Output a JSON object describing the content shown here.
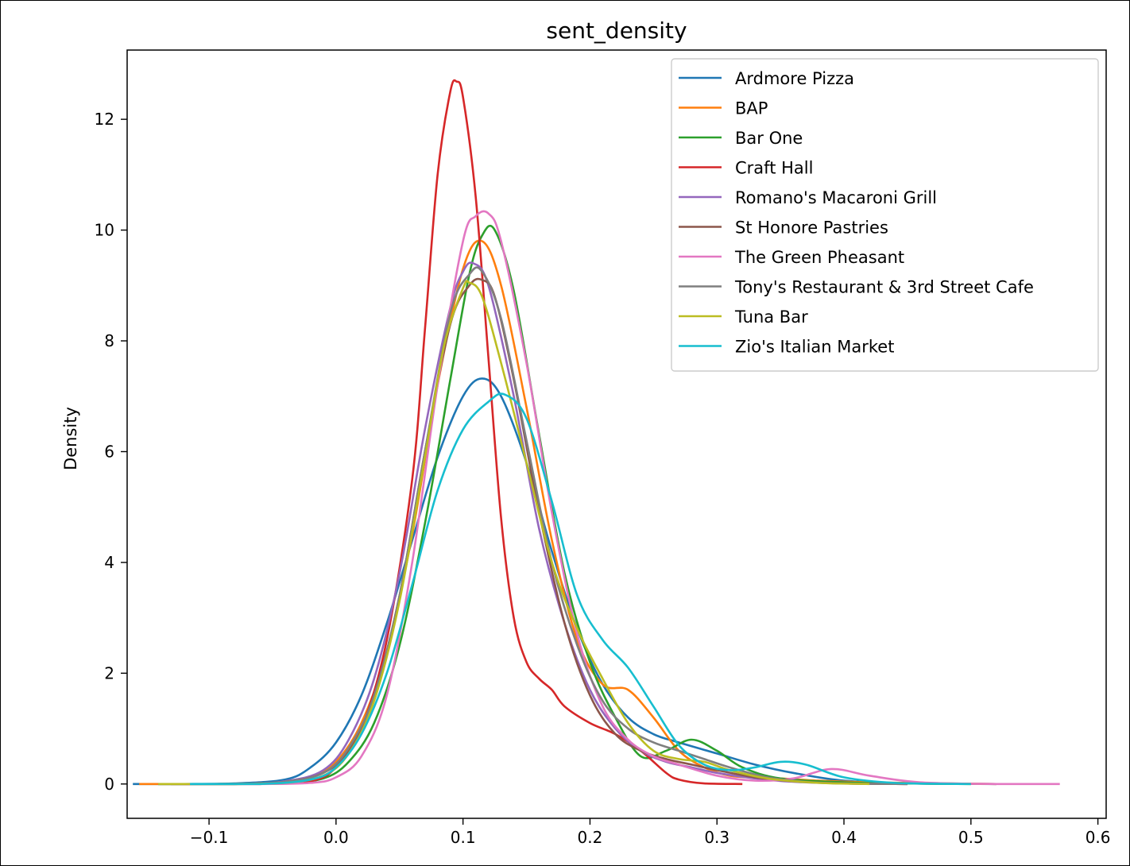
{
  "chart_data": {
    "type": "line",
    "title": "sent_density",
    "xlabel": "",
    "ylabel": "Density",
    "xlim": [
      -0.1645,
      0.6065
    ],
    "ylim": [
      -0.62,
      13.25
    ],
    "xticks": [
      -0.1,
      0.0,
      0.1,
      0.2,
      0.3,
      0.4,
      0.5,
      0.6
    ],
    "xtick_labels": [
      "−0.1",
      "0.0",
      "0.1",
      "0.2",
      "0.3",
      "0.4",
      "0.5",
      "0.6"
    ],
    "yticks": [
      0,
      2,
      4,
      6,
      8,
      10,
      12
    ],
    "ytick_labels": [
      "0",
      "2",
      "4",
      "6",
      "8",
      "10",
      "12"
    ],
    "grid": false,
    "legend_position": "top-right",
    "series": [
      {
        "name": "Ardmore Pizza",
        "color": "#1f77b4",
        "x": [
          -0.16,
          -0.12,
          -0.08,
          -0.04,
          -0.02,
          0.0,
          0.02,
          0.04,
          0.06,
          0.08,
          0.1,
          0.115,
          0.13,
          0.15,
          0.17,
          0.19,
          0.21,
          0.23,
          0.25,
          0.27,
          0.3,
          0.33,
          0.36,
          0.4,
          0.45,
          0.52
        ],
        "y": [
          0,
          0,
          0.01,
          0.08,
          0.3,
          0.75,
          1.6,
          2.9,
          4.4,
          5.9,
          7.0,
          7.32,
          7.0,
          5.8,
          4.2,
          2.8,
          1.8,
          1.2,
          0.9,
          0.75,
          0.55,
          0.35,
          0.2,
          0.06,
          0.01,
          0
        ]
      },
      {
        "name": "BAP",
        "color": "#ff7f0e",
        "x": [
          -0.155,
          -0.1,
          -0.05,
          -0.02,
          0.0,
          0.02,
          0.04,
          0.06,
          0.08,
          0.1,
          0.115,
          0.13,
          0.15,
          0.17,
          0.19,
          0.21,
          0.23,
          0.25,
          0.27,
          0.29,
          0.31,
          0.33,
          0.35,
          0.38,
          0.42,
          0.48,
          0.52
        ],
        "y": [
          0,
          0,
          0.02,
          0.12,
          0.4,
          1.1,
          2.4,
          4.5,
          7.2,
          9.3,
          9.8,
          9.0,
          6.8,
          4.4,
          2.6,
          1.8,
          1.7,
          1.2,
          0.6,
          0.3,
          0.15,
          0.12,
          0.1,
          0.06,
          0.03,
          0.01,
          0
        ]
      },
      {
        "name": "Bar One",
        "color": "#2ca02c",
        "x": [
          -0.14,
          -0.08,
          -0.04,
          -0.01,
          0.01,
          0.03,
          0.05,
          0.07,
          0.09,
          0.105,
          0.115,
          0.125,
          0.14,
          0.16,
          0.18,
          0.2,
          0.22,
          0.24,
          0.26,
          0.28,
          0.3,
          0.32,
          0.35,
          0.4,
          0.45,
          0.5
        ],
        "y": [
          0,
          0,
          0.02,
          0.1,
          0.4,
          1.1,
          2.5,
          4.7,
          7.3,
          9.2,
          9.9,
          10.0,
          8.9,
          6.3,
          3.8,
          2.2,
          1.2,
          0.5,
          0.6,
          0.8,
          0.6,
          0.3,
          0.1,
          0.03,
          0.01,
          0
        ]
      },
      {
        "name": "Craft Hall",
        "color": "#d62728",
        "x": [
          -0.12,
          -0.06,
          -0.02,
          0.0,
          0.02,
          0.04,
          0.06,
          0.07,
          0.08,
          0.09,
          0.095,
          0.1,
          0.11,
          0.12,
          0.13,
          0.14,
          0.15,
          0.16,
          0.17,
          0.18,
          0.2,
          0.22,
          0.24,
          0.26,
          0.27,
          0.29,
          0.32
        ],
        "y": [
          0,
          0,
          0.05,
          0.3,
          1.0,
          2.6,
          5.5,
          8.2,
          11.0,
          12.5,
          12.68,
          12.4,
          10.6,
          7.7,
          4.8,
          3.0,
          2.2,
          1.9,
          1.7,
          1.4,
          1.1,
          0.9,
          0.6,
          0.2,
          0.08,
          0.01,
          0
        ]
      },
      {
        "name": "Romano's Macaroni Grill",
        "color": "#9467bd",
        "x": [
          -0.14,
          -0.08,
          -0.04,
          -0.01,
          0.01,
          0.03,
          0.05,
          0.07,
          0.09,
          0.1,
          0.108,
          0.12,
          0.14,
          0.16,
          0.18,
          0.2,
          0.22,
          0.24,
          0.26,
          0.28,
          0.3,
          0.33,
          0.36,
          0.4,
          0.45
        ],
        "y": [
          0,
          0,
          0.05,
          0.25,
          0.8,
          1.9,
          3.8,
          6.4,
          8.6,
          9.25,
          9.4,
          9.0,
          7.0,
          4.6,
          2.9,
          1.7,
          1.0,
          0.6,
          0.4,
          0.3,
          0.2,
          0.1,
          0.04,
          0.01,
          0
        ]
      },
      {
        "name": "St Honore Pastries",
        "color": "#8c564b",
        "x": [
          -0.13,
          -0.08,
          -0.04,
          -0.01,
          0.01,
          0.03,
          0.05,
          0.07,
          0.09,
          0.105,
          0.115,
          0.125,
          0.14,
          0.16,
          0.18,
          0.2,
          0.22,
          0.24,
          0.26,
          0.28,
          0.3,
          0.33,
          0.36,
          0.4,
          0.45
        ],
        "y": [
          0,
          0,
          0.04,
          0.2,
          0.6,
          1.6,
          3.4,
          6.0,
          8.3,
          9.0,
          9.1,
          8.8,
          7.3,
          4.9,
          2.9,
          1.6,
          0.9,
          0.6,
          0.45,
          0.35,
          0.25,
          0.12,
          0.05,
          0.01,
          0
        ]
      },
      {
        "name": "The Green Pheasant",
        "color": "#e377c2",
        "x": [
          -0.12,
          -0.06,
          -0.02,
          0.0,
          0.02,
          0.04,
          0.06,
          0.08,
          0.1,
          0.11,
          0.12,
          0.13,
          0.15,
          0.17,
          0.19,
          0.21,
          0.23,
          0.25,
          0.27,
          0.3,
          0.33,
          0.36,
          0.39,
          0.42,
          0.46,
          0.52,
          0.57
        ],
        "y": [
          0,
          0,
          0.02,
          0.12,
          0.5,
          1.6,
          4.0,
          7.2,
          9.8,
          10.25,
          10.3,
          9.8,
          7.6,
          4.9,
          2.7,
          1.4,
          0.8,
          0.5,
          0.35,
          0.15,
          0.06,
          0.1,
          0.27,
          0.15,
          0.03,
          0,
          0
        ]
      },
      {
        "name": "Tony's Restaurant & 3rd Street Cafe",
        "color": "#7f7f7f",
        "x": [
          -0.13,
          -0.08,
          -0.04,
          -0.01,
          0.01,
          0.03,
          0.05,
          0.07,
          0.09,
          0.105,
          0.115,
          0.13,
          0.15,
          0.17,
          0.19,
          0.21,
          0.23,
          0.25,
          0.27,
          0.29,
          0.31,
          0.34,
          0.37,
          0.4,
          0.45
        ],
        "y": [
          0,
          0,
          0.04,
          0.2,
          0.65,
          1.6,
          3.4,
          6.0,
          8.5,
          9.2,
          9.25,
          8.4,
          6.2,
          4.0,
          2.5,
          1.5,
          1.0,
          0.75,
          0.6,
          0.45,
          0.3,
          0.12,
          0.04,
          0.01,
          0
        ]
      },
      {
        "name": "Tuna Bar",
        "color": "#bcbd22",
        "x": [
          -0.14,
          -0.08,
          -0.04,
          -0.01,
          0.01,
          0.03,
          0.05,
          0.07,
          0.085,
          0.1,
          0.105,
          0.115,
          0.13,
          0.15,
          0.17,
          0.19,
          0.21,
          0.23,
          0.25,
          0.27,
          0.29,
          0.31,
          0.34,
          0.38,
          0.42
        ],
        "y": [
          0,
          0,
          0.02,
          0.15,
          0.55,
          1.5,
          3.3,
          5.9,
          7.9,
          8.95,
          9.05,
          8.8,
          7.6,
          5.8,
          4.0,
          2.8,
          1.9,
          1.1,
          0.6,
          0.45,
          0.4,
          0.25,
          0.1,
          0.02,
          0
        ]
      },
      {
        "name": "Zio's Italian Market",
        "color": "#17becf",
        "x": [
          -0.115,
          -0.06,
          -0.02,
          0.0,
          0.02,
          0.04,
          0.06,
          0.08,
          0.1,
          0.12,
          0.133,
          0.15,
          0.17,
          0.19,
          0.21,
          0.23,
          0.25,
          0.27,
          0.29,
          0.31,
          0.33,
          0.35,
          0.37,
          0.4,
          0.44,
          0.5
        ],
        "y": [
          0,
          0,
          0.08,
          0.3,
          0.9,
          2.0,
          3.6,
          5.3,
          6.4,
          6.9,
          7.03,
          6.6,
          5.1,
          3.4,
          2.6,
          2.1,
          1.4,
          0.7,
          0.35,
          0.25,
          0.3,
          0.4,
          0.35,
          0.12,
          0.02,
          0
        ]
      }
    ]
  }
}
